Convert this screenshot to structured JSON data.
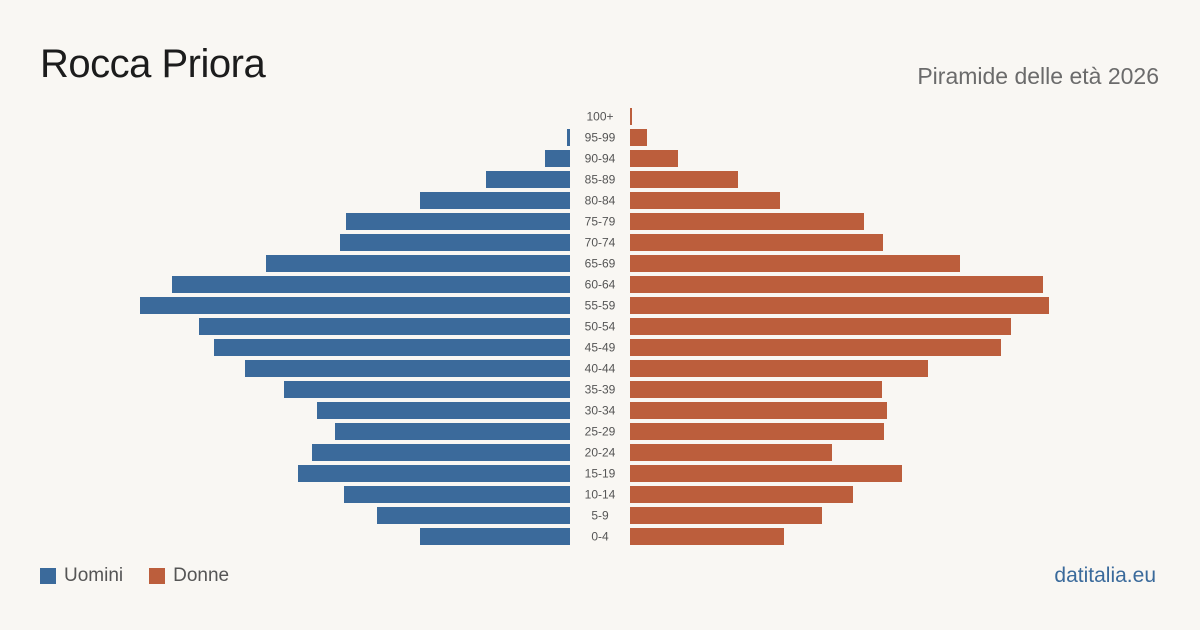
{
  "title": "Rocca Priora",
  "subtitle": "Piramide delle età 2026",
  "brand": "datitalia.eu",
  "legend": [
    {
      "label": "Uomini",
      "color": "#3b6a9b"
    },
    {
      "label": "Donne",
      "color": "#bc5e3c"
    }
  ],
  "chart_data": {
    "type": "bar",
    "orientation": "horizontal",
    "layout": "population-pyramid",
    "categories": [
      "100+",
      "95-99",
      "90-94",
      "85-89",
      "80-84",
      "75-79",
      "70-74",
      "65-69",
      "60-64",
      "55-59",
      "50-54",
      "45-49",
      "40-44",
      "35-39",
      "30-34",
      "25-29",
      "20-24",
      "15-19",
      "10-14",
      "5-9",
      "0-4"
    ],
    "series": [
      {
        "name": "Uomini",
        "color": "#3b6a9b",
        "values": [
          0,
          3,
          25,
          84,
          150,
          224,
          230,
          304,
          398,
          430,
          371,
          356,
          325,
          286,
          253,
          235,
          258,
          272,
          226,
          193,
          150
        ]
      },
      {
        "name": "Donne",
        "color": "#bc5e3c",
        "values": [
          2,
          17,
          48,
          108,
          150,
          234,
          253,
          330,
          413,
          419,
          381,
          371,
          298,
          252,
          257,
          254,
          202,
          272,
          223,
          192,
          154
        ]
      }
    ],
    "grid": false,
    "legend_position": "bottom-left"
  }
}
